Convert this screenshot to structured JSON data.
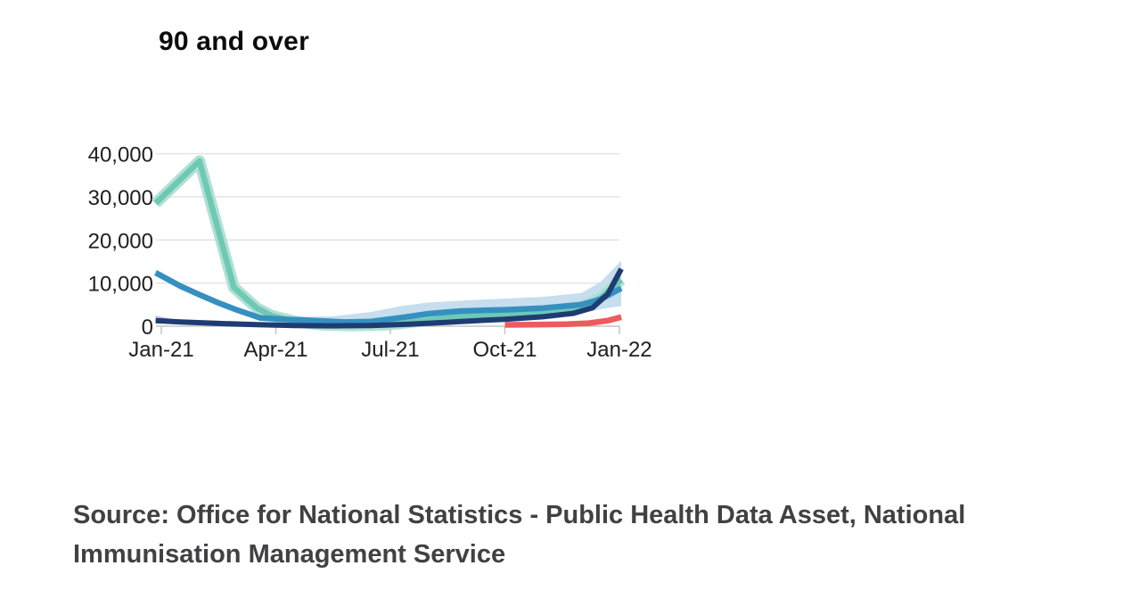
{
  "title": "90 and over",
  "source": {
    "text": "Source: Office for National Statistics - Public Health Data Asset, National Immunisation Management Service"
  },
  "chart_data": {
    "type": "line",
    "title": "90 and over",
    "xlabel": "",
    "ylabel": "",
    "grid": "horizontal",
    "legend": "none",
    "ylim": [
      0,
      40000
    ],
    "xlim_months": [
      -0.15,
      12.05
    ],
    "y_ticks": [
      0,
      10000,
      20000,
      30000,
      40000
    ],
    "y_tick_labels": [
      "0",
      "10,000",
      "20,000",
      "30,000",
      "40,000"
    ],
    "x_tick_months": [
      0,
      3,
      6,
      9,
      12
    ],
    "x_tick_labels": [
      "Jan-21",
      "Apr-21",
      "Jul-21",
      "Oct-21",
      "Jan-22"
    ],
    "axis_color": "#c4c4c4",
    "gridline_color": "#e3e3e3",
    "bands": [
      {
        "name": "mid-blue-confidence-band",
        "color": "#c6deee",
        "top": [
          [
            -0.15,
            13200
          ],
          [
            0.5,
            9800
          ],
          [
            1,
            7700
          ],
          [
            1.5,
            5700
          ],
          [
            2,
            4000
          ],
          [
            2.6,
            2400
          ],
          [
            3.5,
            2100
          ],
          [
            4.5,
            2300
          ],
          [
            5.5,
            3300
          ],
          [
            6.3,
            4700
          ],
          [
            7,
            5500
          ],
          [
            8,
            6000
          ],
          [
            9,
            6400
          ],
          [
            10,
            6800
          ],
          [
            11,
            7700
          ],
          [
            11.5,
            10200
          ],
          [
            12.05,
            15200
          ]
        ],
        "bottom": [
          [
            -0.15,
            11700
          ],
          [
            0.5,
            8700
          ],
          [
            1,
            6800
          ],
          [
            1.5,
            4900
          ],
          [
            2,
            3300
          ],
          [
            2.6,
            1500
          ],
          [
            3.5,
            900
          ],
          [
            4.5,
            600
          ],
          [
            5.5,
            800
          ],
          [
            6.3,
            1400
          ],
          [
            7,
            1800
          ],
          [
            8,
            2000
          ],
          [
            9,
            2100
          ],
          [
            10,
            2400
          ],
          [
            11,
            3000
          ],
          [
            11.5,
            3900
          ],
          [
            12.05,
            4700
          ]
        ]
      },
      {
        "name": "dark-navy-confidence-band",
        "color": "#b9c3dc",
        "top": [
          [
            -0.15,
            2450
          ],
          [
            0.4,
            1450
          ],
          [
            1.1,
            700
          ]
        ],
        "bottom": [
          [
            -0.15,
            600
          ],
          [
            0.4,
            750
          ],
          [
            1.1,
            600
          ]
        ]
      }
    ],
    "series": [
      {
        "name": "teal-green",
        "color": "#6ec9b4",
        "halo_color": "#b2e0d4",
        "width": 6.5,
        "points": [
          [
            -0.15,
            28500
          ],
          [
            1.0,
            38300
          ],
          [
            1.9,
            9000
          ],
          [
            2.5,
            4200
          ],
          [
            2.9,
            2400
          ],
          [
            3.5,
            1100
          ],
          [
            4.2,
            350
          ],
          [
            5,
            150
          ],
          [
            6,
            400
          ],
          [
            6.8,
            1200
          ],
          [
            7.5,
            2000
          ],
          [
            8.5,
            2400
          ],
          [
            9,
            2600
          ],
          [
            10,
            3300
          ],
          [
            11,
            4500
          ],
          [
            11.5,
            6500
          ],
          [
            12.05,
            10800
          ]
        ]
      },
      {
        "name": "mid-blue",
        "color": "#3590c0",
        "width": 6.5,
        "points": [
          [
            -0.15,
            12400
          ],
          [
            0.5,
            9300
          ],
          [
            1,
            7300
          ],
          [
            1.5,
            5400
          ],
          [
            2,
            3700
          ],
          [
            2.6,
            1900
          ],
          [
            3.2,
            1600
          ],
          [
            4,
            1300
          ],
          [
            4.8,
            950
          ],
          [
            5.5,
            1100
          ],
          [
            6.3,
            2000
          ],
          [
            7,
            2900
          ],
          [
            7.8,
            3500
          ],
          [
            8.5,
            3700
          ],
          [
            9,
            3800
          ],
          [
            10,
            4200
          ],
          [
            11,
            5000
          ],
          [
            11.5,
            6200
          ],
          [
            12.05,
            8800
          ]
        ]
      },
      {
        "name": "dark-navy",
        "color": "#1e3c72",
        "width": 6,
        "points": [
          [
            -0.15,
            1300
          ],
          [
            0.5,
            1000
          ],
          [
            1.5,
            650
          ],
          [
            2.5,
            350
          ],
          [
            3.5,
            150
          ],
          [
            4.5,
            80
          ],
          [
            5.5,
            150
          ],
          [
            6.5,
            450
          ],
          [
            7.5,
            900
          ],
          [
            8.5,
            1400
          ],
          [
            9,
            1600
          ],
          [
            10,
            2200
          ],
          [
            10.8,
            3000
          ],
          [
            11.3,
            4300
          ],
          [
            11.7,
            7500
          ],
          [
            12.05,
            13300
          ]
        ]
      },
      {
        "name": "coral-red",
        "color": "#ee5a5e",
        "width": 6.5,
        "points": [
          [
            9.0,
            300
          ],
          [
            9.8,
            380
          ],
          [
            10.6,
            480
          ],
          [
            11.2,
            700
          ],
          [
            11.7,
            1300
          ],
          [
            12.05,
            2100
          ]
        ]
      }
    ]
  }
}
